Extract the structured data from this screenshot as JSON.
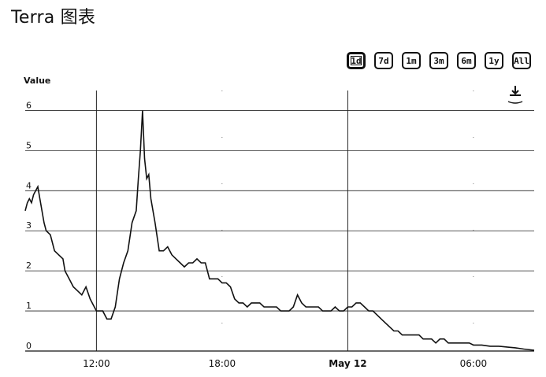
{
  "title": "Terra 图表",
  "range_buttons": [
    "1d",
    "7d",
    "1m",
    "3m",
    "6m",
    "1y",
    "All"
  ],
  "active_range": "1d",
  "chart_data": {
    "type": "line",
    "ylabel": "Value",
    "ylim": [
      0,
      6.5
    ],
    "yticks": [
      0,
      1,
      2,
      3,
      4,
      5,
      6
    ],
    "x_ticks": [
      "12:00",
      "18:00",
      "May 12",
      "06:00"
    ],
    "x_tick_hours": [
      12,
      18,
      24,
      30
    ],
    "x_range_hours": [
      8.6,
      32.9
    ],
    "x_hours": [
      8.6,
      8.7,
      8.8,
      8.9,
      9.0,
      9.2,
      9.3,
      9.5,
      9.6,
      9.8,
      10.0,
      10.2,
      10.4,
      10.5,
      10.7,
      10.9,
      11.1,
      11.3,
      11.5,
      11.7,
      11.9,
      12.0,
      12.1,
      12.3,
      12.5,
      12.7,
      12.9,
      13.1,
      13.3,
      13.5,
      13.7,
      13.9,
      14.0,
      14.1,
      14.2,
      14.3,
      14.4,
      14.5,
      14.6,
      14.8,
      15.0,
      15.2,
      15.4,
      15.6,
      15.8,
      16.0,
      16.2,
      16.4,
      16.6,
      16.8,
      17.0,
      17.2,
      17.4,
      17.6,
      17.8,
      18.0,
      18.2,
      18.4,
      18.6,
      18.8,
      19.0,
      19.2,
      19.4,
      19.6,
      19.8,
      20.0,
      20.2,
      20.4,
      20.6,
      20.8,
      21.0,
      21.2,
      21.4,
      21.6,
      21.8,
      22.0,
      22.2,
      22.4,
      22.6,
      22.8,
      23.0,
      23.2,
      23.4,
      23.6,
      23.8,
      24.0,
      24.2,
      24.4,
      24.6,
      24.8,
      25.0,
      25.2,
      25.4,
      25.6,
      25.8,
      26.0,
      26.2,
      26.4,
      26.6,
      26.8,
      27.0,
      27.2,
      27.4,
      27.6,
      27.8,
      28.0,
      28.2,
      28.4,
      28.6,
      28.8,
      29.0,
      29.2,
      29.4,
      29.6,
      29.8,
      30.0,
      30.4,
      30.8,
      31.2,
      31.6,
      32.0,
      32.4,
      32.9
    ],
    "values": [
      3.5,
      3.7,
      3.8,
      3.7,
      3.9,
      4.1,
      3.8,
      3.2,
      3.0,
      2.9,
      2.5,
      2.4,
      2.3,
      2.0,
      1.8,
      1.6,
      1.5,
      1.4,
      1.6,
      1.3,
      1.1,
      1.0,
      1.0,
      1.0,
      0.8,
      0.8,
      1.1,
      1.8,
      2.2,
      2.5,
      3.2,
      3.5,
      4.3,
      5.0,
      6.0,
      4.8,
      4.3,
      4.4,
      3.8,
      3.2,
      2.5,
      2.5,
      2.6,
      2.4,
      2.3,
      2.2,
      2.1,
      2.2,
      2.2,
      2.3,
      2.2,
      2.2,
      1.8,
      1.8,
      1.8,
      1.7,
      1.7,
      1.6,
      1.3,
      1.2,
      1.2,
      1.1,
      1.2,
      1.2,
      1.2,
      1.1,
      1.1,
      1.1,
      1.1,
      1.0,
      1.0,
      1.0,
      1.1,
      1.4,
      1.2,
      1.1,
      1.1,
      1.1,
      1.1,
      1.0,
      1.0,
      1.0,
      1.1,
      1.0,
      1.0,
      1.1,
      1.1,
      1.2,
      1.2,
      1.1,
      1.0,
      1.0,
      0.9,
      0.8,
      0.7,
      0.6,
      0.5,
      0.5,
      0.4,
      0.4,
      0.4,
      0.4,
      0.4,
      0.3,
      0.3,
      0.3,
      0.2,
      0.3,
      0.3,
      0.2,
      0.2,
      0.2,
      0.2,
      0.2,
      0.2,
      0.15,
      0.15,
      0.12,
      0.12,
      0.1,
      0.08,
      0.05,
      0.02
    ],
    "grid": true
  }
}
